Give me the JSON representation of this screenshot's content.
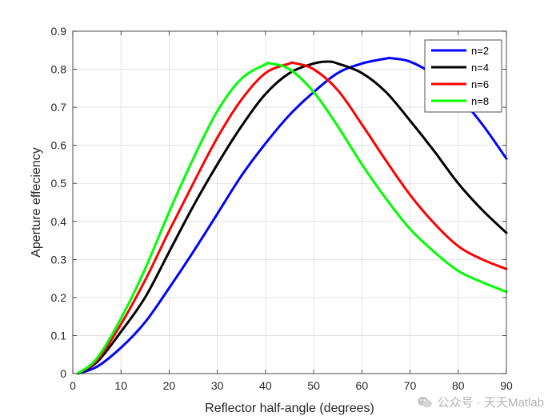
{
  "chart_data": {
    "type": "line",
    "title": "",
    "xlabel": "Reflector half-angle (degrees)",
    "ylabel": "Aperture effeciency",
    "xlim": [
      0,
      90
    ],
    "ylim": [
      0,
      0.9
    ],
    "xticks": [
      0,
      10,
      20,
      30,
      40,
      50,
      60,
      70,
      80,
      90
    ],
    "yticks": [
      0,
      0.1,
      0.2,
      0.3,
      0.4,
      0.5,
      0.6,
      0.7,
      0.8,
      0.9
    ],
    "xtick_labels": [
      "0",
      "10",
      "20",
      "30",
      "40",
      "50",
      "60",
      "70",
      "80",
      "90"
    ],
    "ytick_labels": [
      "0",
      "0.1",
      "0.2",
      "0.3",
      "0.4",
      "0.5",
      "0.6",
      "0.7",
      "0.8",
      "0.9"
    ],
    "grid": true,
    "legend_position": "top-right",
    "series": [
      {
        "name": "n=2",
        "color": "#0000ff",
        "x": [
          1,
          5,
          10,
          15,
          20,
          25,
          30,
          35,
          40,
          45,
          50,
          55,
          60,
          65,
          66,
          70,
          75,
          80,
          85,
          90
        ],
        "y": [
          0.0,
          0.018,
          0.068,
          0.135,
          0.225,
          0.32,
          0.42,
          0.52,
          0.605,
          0.68,
          0.74,
          0.79,
          0.815,
          0.828,
          0.829,
          0.82,
          0.785,
          0.73,
          0.655,
          0.565
        ]
      },
      {
        "name": "n=4",
        "color": "#000000",
        "x": [
          1,
          5,
          10,
          15,
          20,
          25,
          30,
          35,
          40,
          45,
          50,
          53,
          55,
          60,
          65,
          70,
          75,
          80,
          85,
          90
        ],
        "y": [
          0.0,
          0.03,
          0.11,
          0.2,
          0.32,
          0.44,
          0.55,
          0.65,
          0.735,
          0.79,
          0.815,
          0.82,
          0.815,
          0.79,
          0.74,
          0.665,
          0.585,
          0.5,
          0.43,
          0.37
        ]
      },
      {
        "name": "n=6",
        "color": "#ff0000",
        "x": [
          1,
          5,
          10,
          15,
          20,
          25,
          30,
          35,
          40,
          45,
          46,
          50,
          55,
          60,
          65,
          70,
          75,
          80,
          85,
          90
        ],
        "y": [
          0.0,
          0.035,
          0.13,
          0.245,
          0.375,
          0.5,
          0.62,
          0.72,
          0.79,
          0.815,
          0.816,
          0.8,
          0.745,
          0.655,
          0.56,
          0.47,
          0.395,
          0.335,
          0.3,
          0.275
        ]
      },
      {
        "name": "n=8",
        "color": "#00ff00",
        "x": [
          1,
          5,
          10,
          15,
          20,
          25,
          30,
          35,
          40,
          41,
          45,
          50,
          55,
          60,
          65,
          70,
          75,
          80,
          85,
          90
        ],
        "y": [
          0.0,
          0.04,
          0.145,
          0.275,
          0.425,
          0.565,
          0.69,
          0.775,
          0.813,
          0.815,
          0.8,
          0.74,
          0.65,
          0.55,
          0.46,
          0.38,
          0.32,
          0.27,
          0.24,
          0.215
        ]
      }
    ]
  },
  "watermark": {
    "text": "公众号 · 天天Matlab",
    "icon": "wechat-icon"
  }
}
